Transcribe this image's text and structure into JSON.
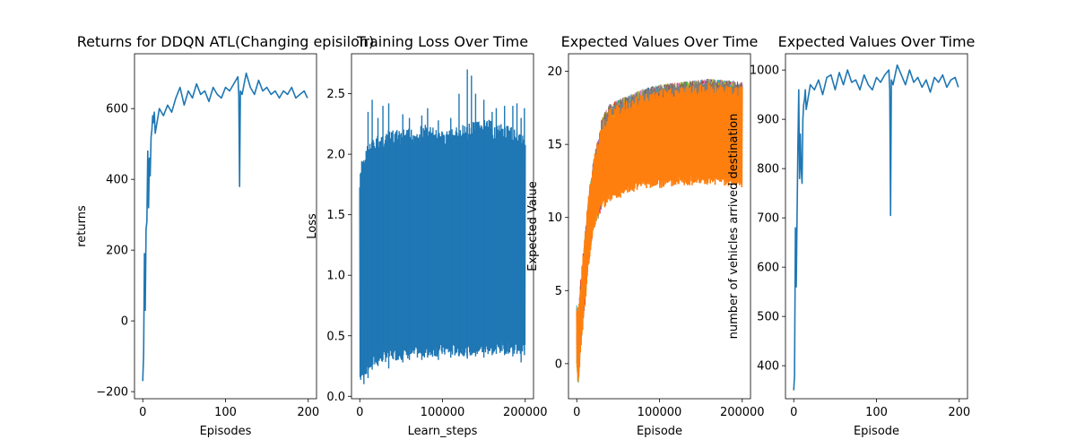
{
  "chart_data": [
    {
      "type": "line",
      "title": "Returns for DDQN ATL(Changing episilon)",
      "xlabel": "Episodes",
      "ylabel": "returns",
      "xlim": [
        -10,
        210
      ],
      "ylim": [
        -220,
        755
      ],
      "xticks": [
        0,
        100,
        200
      ],
      "yticks": [
        -200,
        0,
        200,
        400,
        600
      ],
      "xtick_labels": [
        "0",
        "100",
        "200"
      ],
      "ytick_labels": [
        "−200",
        "0",
        "200",
        "400",
        "600"
      ],
      "series_color": "#1f77b4",
      "x": [
        0,
        1,
        2,
        3,
        4,
        5,
        6,
        7,
        8,
        9,
        10,
        11,
        12,
        13,
        14,
        15,
        20,
        25,
        30,
        35,
        40,
        45,
        50,
        55,
        60,
        65,
        70,
        75,
        80,
        85,
        90,
        95,
        100,
        105,
        110,
        115,
        116,
        117,
        118,
        120,
        125,
        130,
        135,
        140,
        145,
        150,
        155,
        160,
        165,
        170,
        175,
        180,
        185,
        190,
        195,
        199
      ],
      "y": [
        -170,
        -90,
        190,
        30,
        260,
        280,
        480,
        320,
        460,
        410,
        520,
        540,
        580,
        560,
        590,
        530,
        600,
        580,
        610,
        590,
        630,
        660,
        610,
        650,
        630,
        670,
        640,
        650,
        620,
        660,
        640,
        630,
        660,
        650,
        670,
        690,
        640,
        380,
        650,
        640,
        700,
        660,
        640,
        680,
        650,
        660,
        640,
        650,
        630,
        650,
        640,
        660,
        630,
        640,
        650,
        630
      ]
    },
    {
      "type": "line",
      "title": "Training Loss Over Time",
      "xlabel": "Learn_steps",
      "ylabel": "Loss",
      "xlim": [
        -10000,
        210000
      ],
      "ylim": [
        -0.02,
        2.83
      ],
      "xticks": [
        0,
        100000,
        200000
      ],
      "yticks": [
        0.0,
        0.5,
        1.0,
        1.5,
        2.0,
        2.5
      ],
      "xtick_labels": [
        "0",
        "100000",
        "200000"
      ],
      "ytick_labels": [
        "0.0",
        "0.5",
        "1.0",
        "1.5",
        "2.0",
        "2.5"
      ],
      "series_color": "#1f77b4",
      "band": {
        "x": [
          0,
          2000,
          5000,
          10000,
          20000,
          30000,
          50000,
          80000,
          100000,
          130000,
          150000,
          170000,
          200000
        ],
        "low": [
          0.1,
          0.12,
          0.15,
          0.2,
          0.25,
          0.28,
          0.3,
          0.32,
          0.33,
          0.33,
          0.34,
          0.35,
          0.35
        ],
        "high": [
          1.8,
          1.95,
          2.0,
          2.1,
          2.15,
          2.2,
          2.2,
          2.25,
          2.2,
          2.25,
          2.3,
          2.25,
          2.2
        ]
      },
      "spikes": {
        "x": [
          5000,
          10000,
          15000,
          22000,
          28000,
          35000,
          45000,
          52000,
          60000,
          75000,
          82000,
          95000,
          110000,
          120000,
          130000,
          135000,
          140000,
          150000,
          160000,
          165000,
          175000,
          185000,
          190000,
          195000,
          199000
        ],
        "y_top": [
          1.95,
          2.35,
          2.45,
          2.3,
          2.4,
          2.42,
          2.2,
          2.33,
          2.3,
          2.32,
          2.38,
          2.28,
          2.3,
          2.5,
          2.7,
          2.65,
          2.5,
          2.45,
          2.35,
          2.38,
          2.4,
          2.4,
          2.42,
          2.3,
          2.38
        ],
        "y_bottom": [
          0.1,
          0.15,
          0.22,
          0.25,
          0.3,
          0.23,
          0.3,
          0.28,
          0.3,
          0.3,
          0.32,
          0.3,
          0.32,
          0.33,
          0.31,
          0.34,
          0.33,
          0.32,
          0.34,
          0.35,
          0.34,
          0.33,
          0.35,
          0.28,
          0.34
        ]
      }
    },
    {
      "type": "line",
      "title": "Expected Values Over Time",
      "xlabel": "Episode",
      "ylabel": "Expected Value",
      "xlim": [
        -10000,
        210000
      ],
      "ylim": [
        -2.4,
        21.2
      ],
      "xticks": [
        0,
        100000,
        200000
      ],
      "yticks": [
        0,
        5,
        10,
        15,
        20
      ],
      "xtick_labels": [
        "0",
        "100000",
        "200000"
      ],
      "ytick_labels": [
        "0",
        "5",
        "10",
        "15",
        "20"
      ],
      "band": {
        "x": [
          0,
          2000,
          5000,
          10000,
          15000,
          20000,
          30000,
          40000,
          60000,
          80000,
          100000,
          130000,
          160000,
          200000
        ],
        "low": [
          -0.5,
          -1.5,
          1.0,
          4.0,
          7.0,
          9.0,
          10.5,
          11.0,
          11.5,
          12.0,
          12.0,
          12.2,
          12.2,
          12.0
        ],
        "high": [
          4.2,
          3.5,
          6.0,
          9.0,
          12.0,
          14.0,
          16.5,
          17.5,
          18.0,
          18.5,
          18.8,
          19.0,
          19.2,
          19.0
        ]
      },
      "colors": [
        "#1f77b4",
        "#2ca02c",
        "#d62728",
        "#9467bd",
        "#e377c2",
        "#17becf",
        "#bcbd22",
        "#8c564b",
        "#7f7f7f",
        "#ff7f0e"
      ],
      "spike_top": 20.0
    },
    {
      "type": "line",
      "title": "Expected Values Over Time",
      "xlabel": "Episode",
      "ylabel": "number of vehicles arrived destination",
      "xlim": [
        -10,
        210
      ],
      "ylim": [
        333,
        1033
      ],
      "xticks": [
        0,
        100,
        200
      ],
      "yticks": [
        400,
        500,
        600,
        700,
        800,
        900,
        1000
      ],
      "xtick_labels": [
        "0",
        "100",
        "200"
      ],
      "ytick_labels": [
        "400",
        "500",
        "600",
        "700",
        "800",
        "900",
        "1000"
      ],
      "series_color": "#1f77b4",
      "x": [
        0,
        1,
        2,
        3,
        4,
        5,
        6,
        7,
        8,
        9,
        10,
        11,
        12,
        13,
        14,
        15,
        20,
        25,
        30,
        35,
        40,
        45,
        50,
        55,
        60,
        65,
        70,
        75,
        80,
        85,
        90,
        95,
        100,
        105,
        110,
        115,
        116,
        117,
        118,
        120,
        125,
        130,
        135,
        140,
        145,
        150,
        155,
        160,
        165,
        170,
        175,
        180,
        185,
        190,
        195,
        199
      ],
      "y": [
        350,
        380,
        680,
        560,
        700,
        840,
        960,
        780,
        870,
        800,
        770,
        900,
        930,
        940,
        960,
        920,
        970,
        960,
        980,
        950,
        985,
        990,
        960,
        995,
        970,
        1000,
        975,
        980,
        960,
        990,
        970,
        960,
        985,
        975,
        990,
        1000,
        960,
        705,
        980,
        970,
        1010,
        990,
        970,
        1000,
        975,
        985,
        965,
        980,
        955,
        985,
        975,
        990,
        965,
        980,
        985,
        965
      ]
    }
  ]
}
